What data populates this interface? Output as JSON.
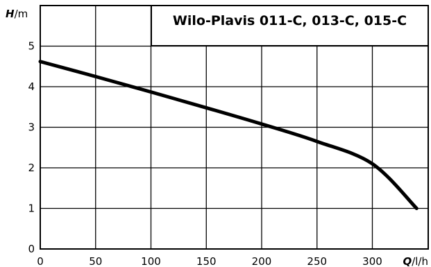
{
  "chart_data": {
    "type": "line",
    "title": "Wilo-Plavis 011-C, 013-C, 015-C",
    "xlabel": {
      "symbol": "Q",
      "unit": "/l/h"
    },
    "ylabel": {
      "symbol": "H",
      "unit": "/m"
    },
    "xlim": [
      0,
      350
    ],
    "ylim": [
      0,
      5.5
    ],
    "x_ticks": [
      0,
      50,
      100,
      150,
      200,
      250,
      300
    ],
    "y_ticks": [
      0,
      1,
      2,
      3,
      4,
      5
    ],
    "grid": true,
    "legend": "none",
    "series": [
      {
        "color": "#000000",
        "x": [
          0,
          50,
          100,
          150,
          200,
          250,
          300,
          340
        ],
        "y": [
          4.62,
          4.25,
          3.87,
          3.48,
          3.08,
          2.65,
          2.1,
          1.0
        ]
      }
    ]
  }
}
